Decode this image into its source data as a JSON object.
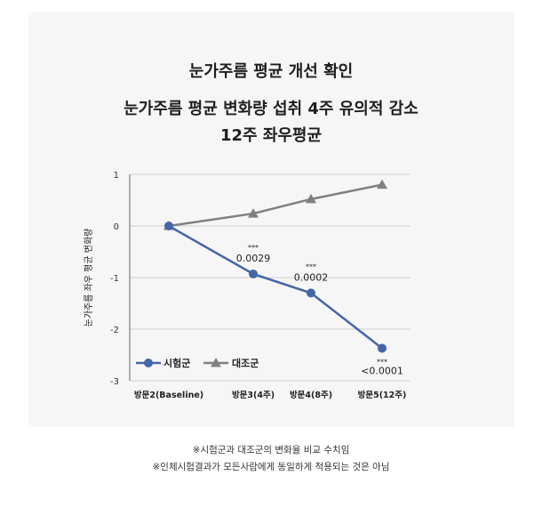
{
  "header": {
    "line1": "눈가주름 평균 개선 확인",
    "line2": "눈가주름 평균 변화량 섭취 4주 유의적 감소",
    "line3": "12주 좌우평균"
  },
  "footnotes": [
    "※시험군과 대조군의 변화율 비교 수치임",
    "※인체시험결과가 모든사람에게 동일하게 적용되는 것은 아님"
  ],
  "chart_data": {
    "type": "line",
    "title": "",
    "xlabel": "",
    "ylabel": "눈가주름 좌우 평균 변화량",
    "categories": [
      "방문2(Baseline)",
      "방문3(4주)",
      "방문4(8주)",
      "방문5(12주)"
    ],
    "ylim": [
      -3,
      1
    ],
    "yticks": [
      1,
      0,
      -1,
      -2,
      -3
    ],
    "grid": true,
    "legend_position": "bottom-left",
    "series": [
      {
        "name": "시험군",
        "values": [
          0,
          -0.93,
          -1.3,
          -2.37
        ],
        "color": "#4466a8",
        "marker": "circle",
        "annotations": [
          {
            "index": 1,
            "stars": "***",
            "p": "0.0029"
          },
          {
            "index": 2,
            "stars": "***",
            "p": "0.0002"
          },
          {
            "index": 3,
            "stars": "***",
            "p": "<0.0001"
          }
        ]
      },
      {
        "name": "대조군",
        "values": [
          0,
          0.24,
          0.52,
          0.8
        ],
        "color": "#808080",
        "marker": "triangle"
      }
    ]
  }
}
